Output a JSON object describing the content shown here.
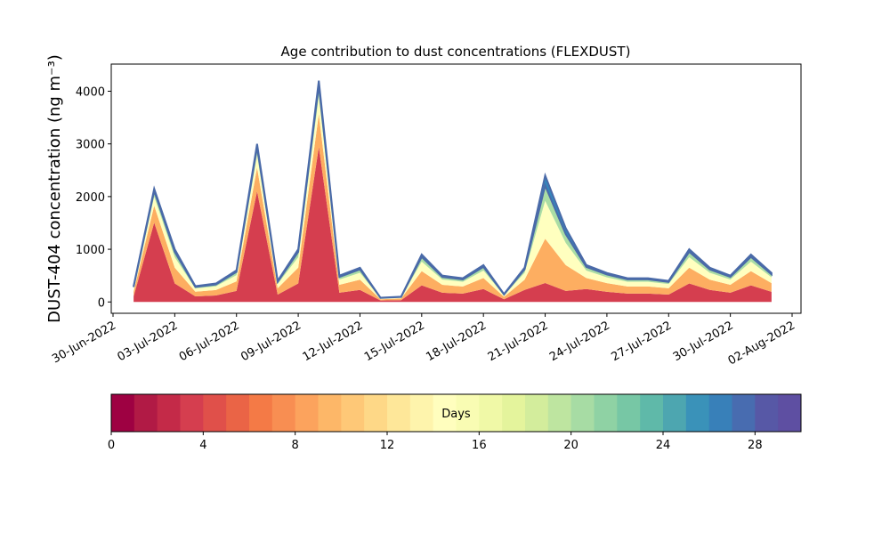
{
  "chart_data": {
    "type": "stackedarea",
    "title": "Age contribution to dust concentrations (FLEXDUST)",
    "y_label": "DUST-404 concentration (ng m⁻³)",
    "x": [
      "2022-07-01",
      "2022-07-02",
      "2022-07-03",
      "2022-07-04",
      "2022-07-05",
      "2022-07-06",
      "2022-07-07",
      "2022-07-08",
      "2022-07-09",
      "2022-07-10",
      "2022-07-11",
      "2022-07-12",
      "2022-07-13",
      "2022-07-14",
      "2022-07-15",
      "2022-07-16",
      "2022-07-17",
      "2022-07-18",
      "2022-07-19",
      "2022-07-20",
      "2022-07-21",
      "2022-07-22",
      "2022-07-23",
      "2022-07-24",
      "2022-07-25",
      "2022-07-26",
      "2022-07-27",
      "2022-07-28",
      "2022-07-29",
      "2022-07-30",
      "2022-07-31",
      "2022-08-01"
    ],
    "series": [
      {
        "color": "#d53e4f",
        "values": [
          105,
          1505,
          350,
          105,
          122,
          210,
          2100,
          140,
          350,
          2940,
          175,
          228,
          28,
          35,
          315,
          175,
          158,
          245,
          52,
          228,
          360,
          210,
          245,
          192,
          158,
          158,
          140,
          350,
          228,
          175,
          315,
          192
        ]
      },
      {
        "color": "#fdae61",
        "values": [
          90,
          322,
          300,
          90,
          105,
          180,
          450,
          120,
          300,
          630,
          150,
          195,
          24,
          30,
          270,
          150,
          135,
          210,
          45,
          195,
          840,
          490,
          210,
          165,
          135,
          135,
          120,
          300,
          195,
          150,
          270,
          165
        ]
      },
      {
        "color": "#ffffbf",
        "values": [
          60,
          172,
          200,
          60,
          70,
          120,
          240,
          80,
          200,
          336,
          100,
          130,
          16,
          20,
          180,
          100,
          90,
          140,
          30,
          130,
          720,
          420,
          140,
          110,
          90,
          90,
          80,
          200,
          130,
          100,
          180,
          110
        ]
      },
      {
        "color": "#abdda4",
        "values": [
          30,
          108,
          100,
          30,
          35,
          60,
          150,
          40,
          100,
          210,
          50,
          65,
          8,
          10,
          90,
          50,
          45,
          70,
          15,
          65,
          288,
          168,
          70,
          55,
          45,
          45,
          40,
          100,
          65,
          50,
          90,
          55
        ]
      },
      {
        "color": "#3288bd",
        "values": [
          15,
          43,
          50,
          15,
          18,
          30,
          60,
          20,
          50,
          84,
          25,
          32,
          4,
          5,
          45,
          25,
          22,
          35,
          8,
          32,
          192,
          112,
          35,
          28,
          22,
          22,
          20,
          50,
          32,
          25,
          45,
          28
        ]
      }
    ],
    "xlim": [
      "2022-06-30",
      "2022-08-02"
    ],
    "xticks": [
      {
        "value": "2022-06-30",
        "label": "30-Jun-2022"
      },
      {
        "value": "2022-07-03",
        "label": "03-Jul-2022"
      },
      {
        "value": "2022-07-06",
        "label": "06-Jul-2022"
      },
      {
        "value": "2022-07-09",
        "label": "09-Jul-2022"
      },
      {
        "value": "2022-07-12",
        "label": "12-Jul-2022"
      },
      {
        "value": "2022-07-15",
        "label": "15-Jul-2022"
      },
      {
        "value": "2022-07-18",
        "label": "18-Jul-2022"
      },
      {
        "value": "2022-07-21",
        "label": "21-Jul-2022"
      },
      {
        "value": "2022-07-24",
        "label": "24-Jul-2022"
      },
      {
        "value": "2022-07-27",
        "label": "27-Jul-2022"
      },
      {
        "value": "2022-07-30",
        "label": "30-Jul-2022"
      },
      {
        "value": "2022-08-02",
        "label": "02-Aug-2022"
      }
    ],
    "ylim": [
      -215,
      4515
    ],
    "yticks": [
      0,
      1000,
      2000,
      3000,
      4000
    ],
    "colorbar": {
      "label": "Days",
      "lim": [
        0,
        30
      ],
      "ticks": [
        0,
        4,
        8,
        12,
        16,
        20,
        24,
        28
      ],
      "colors": [
        "#9e0142",
        "#b11a45",
        "#c42a48",
        "#d53e4f",
        "#e0504a",
        "#ea6446",
        "#f47a46",
        "#f88e52",
        "#fca35d",
        "#fdb768",
        "#fec877",
        "#fed887",
        "#fee799",
        "#fef4ac",
        "#fffebe",
        "#f9fcb3",
        "#f0f9a7",
        "#e4f49c",
        "#d3ed9c",
        "#bee5a0",
        "#a7dca4",
        "#8fd2a4",
        "#77c7a5",
        "#5fb9a9",
        "#4da6b0",
        "#3a92b9",
        "#3880b9",
        "#486cb0",
        "#5758a6",
        "#5e4fa2"
      ]
    }
  }
}
